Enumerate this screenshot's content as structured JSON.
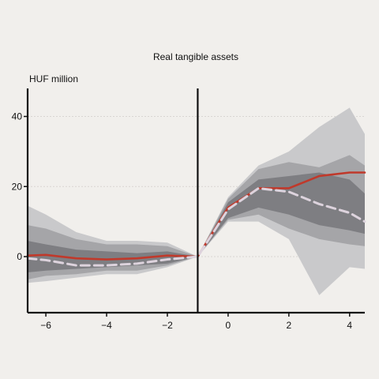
{
  "chart_data": {
    "type": "line",
    "title": "Real tangible assets",
    "ylabel": "HUF million",
    "xlim": [
      -6.6,
      4.5
    ],
    "ylim": [
      -16,
      48
    ],
    "x_ticks": [
      -6,
      -4,
      -2,
      0,
      2,
      4
    ],
    "x_tick_labels": [
      "−6",
      "−4",
      "−2",
      "0",
      "2",
      "4"
    ],
    "y_ticks": [
      0,
      20,
      40
    ],
    "y_tick_labels": [
      "0",
      "20",
      "40"
    ],
    "event_line_x": -1,
    "grid": "horizontal-dashed",
    "colors": {
      "background": "#f1efec",
      "band_outer": "#c9c9cb",
      "band_mid": "#a5a5a8",
      "band_inner": "#7e7e82",
      "estimate_line": "#c0392b",
      "dashed_line": "#ddd3dd",
      "axis": "#111111",
      "grid": "#d9d6d2"
    },
    "series": [
      {
        "style": "solid",
        "x": [
          -6.6,
          -6,
          -5,
          -4,
          -3,
          -2,
          -1,
          0,
          1,
          2,
          3,
          4,
          4.5
        ],
        "y": [
          0.3,
          0.5,
          -0.5,
          -0.8,
          -0.5,
          0.3,
          0,
          14,
          19.5,
          19.5,
          23,
          24,
          24
        ]
      },
      {
        "style": "dashed",
        "x": [
          -6.6,
          -6,
          -5,
          -4,
          -3,
          -2,
          -1,
          0,
          1,
          2,
          3,
          4,
          4.5
        ],
        "y": [
          -0.5,
          -1,
          -2.5,
          -2.5,
          -2,
          -0.8,
          0,
          13.5,
          19.5,
          18.5,
          15,
          12.5,
          10
        ]
      }
    ],
    "bands": [
      {
        "level": "outer",
        "x": [
          -6.6,
          -6,
          -5,
          -4,
          -3,
          -2,
          -1,
          0,
          1,
          2,
          3,
          4,
          4.5
        ],
        "lower": [
          -7.5,
          -7,
          -6,
          -5,
          -5,
          -3,
          0,
          10,
          10,
          5,
          -11,
          -3,
          -3.5
        ],
        "upper": [
          14.5,
          12,
          7,
          4.5,
          4.5,
          4,
          0,
          17,
          26,
          30,
          37,
          42.5,
          35
        ]
      },
      {
        "level": "middle",
        "x": [
          -6.6,
          -6,
          -5,
          -4,
          -3,
          -2,
          -1,
          0,
          1,
          2,
          3,
          4,
          4.5
        ],
        "lower": [
          -6.5,
          -5.5,
          -5,
          -4,
          -4,
          -2.5,
          0,
          10.5,
          12,
          8,
          5,
          3.5,
          3
        ],
        "upper": [
          9,
          8,
          5,
          3.5,
          3.5,
          3,
          0,
          16.5,
          25,
          27,
          25.5,
          29,
          26
        ]
      },
      {
        "level": "inner",
        "x": [
          -6.6,
          -6,
          -5,
          -4,
          -3,
          -2,
          -1,
          0,
          1,
          2,
          3,
          4,
          4.5
        ],
        "lower": [
          -4.5,
          -4,
          -3.5,
          -3,
          -2.5,
          -2,
          0,
          11,
          14,
          12,
          9,
          7.5,
          6.5
        ],
        "upper": [
          4.5,
          3.5,
          2,
          1.5,
          1,
          1.5,
          0,
          15.5,
          22,
          23,
          24,
          22,
          18
        ]
      }
    ]
  }
}
